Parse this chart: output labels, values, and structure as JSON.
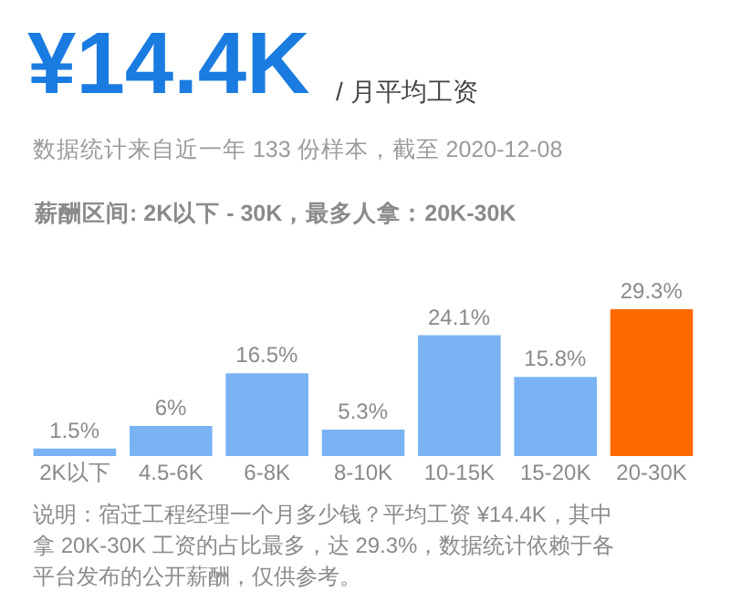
{
  "chart_data": {
    "type": "bar",
    "title": "¥14.4K",
    "subtitle": "/ 月平均工资",
    "annotations": [
      "数据统计来自近一年 133 份样本，截至 2020-12-08",
      "薪酬区间: 2K以下 - 30K，最多人拿：20K-30K",
      "说明：宿迁工程经理一个月多少钱？平均工资 ¥14.4K，其中",
      "拿 20K-30K 工资的占比最多，达 29.3%，数据统计依赖于各",
      "平台发布的公开薪酬，仅供参考。"
    ],
    "categories": [
      "2K以下",
      "4.5-6K",
      "6-8K",
      "8-10K",
      "10-15K",
      "15-20K",
      "20-30K"
    ],
    "values": [
      1.5,
      6,
      16.5,
      5.3,
      24.1,
      15.8,
      29.3
    ],
    "value_labels": [
      "1.5%",
      "6%",
      "16.5%",
      "5.3%",
      "24.1%",
      "15.8%",
      "29.3%"
    ],
    "colors": [
      "#79b3f4",
      "#79b3f4",
      "#79b3f4",
      "#79b3f4",
      "#79b3f4",
      "#79b3f4",
      "#ff6a00"
    ],
    "tick_labels": "x"
  }
}
